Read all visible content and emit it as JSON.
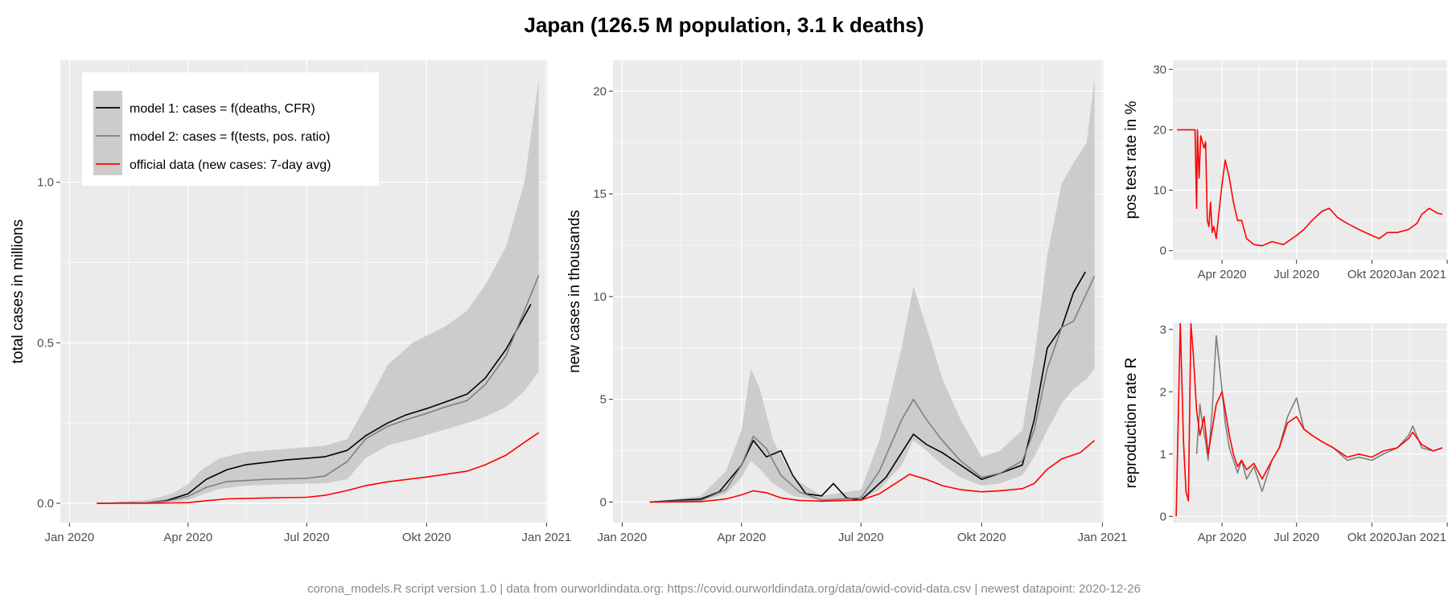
{
  "title": "Japan (126.5 M population, 3.1 k deaths)",
  "caption": "corona_models.R script version 1.0 | data from ourworldindata.org: https://covid.ourworldindata.org/data/owid-covid-data.csv | newest datapoint: 2020-12-26",
  "colors": {
    "panel_bg": "#ebebeb",
    "grid": "#ffffff",
    "band": "#cccccc",
    "model1": "#000000",
    "model2": "#7f7f7f",
    "official": "#ff0000"
  },
  "chart_data": [
    {
      "id": "total",
      "type": "line",
      "ylabel": "total cases in millions",
      "xlabel": "",
      "x_ticks": [
        "Jan 2020",
        "Apr 2020",
        "Jul 2020",
        "Okt 2020",
        "Jan 2021"
      ],
      "x_tick_dates": [
        "2020-01-01",
        "2020-04-01",
        "2020-07-01",
        "2020-10-01",
        "2021-01-01"
      ],
      "xlim": [
        "2019-12-25",
        "2021-01-02"
      ],
      "ylim": [
        -0.06,
        1.38
      ],
      "y_ticks": [
        0.0,
        0.5,
        1.0
      ],
      "y_tick_labels": [
        "0.0",
        "0.5",
        "1.0"
      ],
      "grid": true,
      "legend_placement": "top-left",
      "legend": [
        "model 1: cases = f(deaths, CFR)",
        "model 2: cases = f(tests, pos. ratio)",
        "official data (new cases: 7-day avg)"
      ],
      "band": {
        "x": [
          "2020-01-22",
          "2020-03-01",
          "2020-03-20",
          "2020-04-01",
          "2020-04-10",
          "2020-04-25",
          "2020-05-15",
          "2020-06-15",
          "2020-07-15",
          "2020-08-01",
          "2020-08-15",
          "2020-09-01",
          "2020-09-20",
          "2020-10-15",
          "2020-11-01",
          "2020-11-15",
          "2020-12-01",
          "2020-12-15",
          "2020-12-26"
        ],
        "lower": [
          0,
          0,
          0.005,
          0.01,
          0.025,
          0.045,
          0.055,
          0.06,
          0.062,
          0.075,
          0.14,
          0.18,
          0.2,
          0.23,
          0.25,
          0.27,
          0.3,
          0.35,
          0.41
        ],
        "upper": [
          0,
          0.01,
          0.03,
          0.06,
          0.1,
          0.14,
          0.16,
          0.17,
          0.18,
          0.2,
          0.3,
          0.43,
          0.5,
          0.55,
          0.6,
          0.68,
          0.8,
          1.0,
          1.32
        ]
      },
      "series": [
        {
          "name": "model 1: cases = f(deaths, CFR)",
          "color_key": "model1",
          "x": [
            "2020-01-22",
            "2020-03-01",
            "2020-03-15",
            "2020-04-01",
            "2020-04-15",
            "2020-05-01",
            "2020-05-15",
            "2020-06-01",
            "2020-06-15",
            "2020-07-01",
            "2020-07-15",
            "2020-08-01",
            "2020-08-15",
            "2020-09-01",
            "2020-09-15",
            "2020-10-01",
            "2020-10-15",
            "2020-11-01",
            "2020-11-15",
            "2020-12-01",
            "2020-12-20"
          ],
          "values": [
            0,
            0.002,
            0.008,
            0.03,
            0.075,
            0.105,
            0.12,
            0.128,
            0.135,
            0.14,
            0.145,
            0.165,
            0.21,
            0.25,
            0.275,
            0.295,
            0.315,
            0.34,
            0.39,
            0.48,
            0.62
          ]
        },
        {
          "name": "model 2: cases = f(tests, pos. ratio)",
          "color_key": "model2",
          "x": [
            "2020-01-22",
            "2020-03-01",
            "2020-03-15",
            "2020-04-01",
            "2020-04-15",
            "2020-05-01",
            "2020-06-01",
            "2020-07-01",
            "2020-07-15",
            "2020-08-01",
            "2020-08-15",
            "2020-09-01",
            "2020-09-15",
            "2020-10-01",
            "2020-10-15",
            "2020-11-01",
            "2020-11-15",
            "2020-12-01",
            "2020-12-26"
          ],
          "values": [
            0,
            0.002,
            0.006,
            0.022,
            0.05,
            0.068,
            0.075,
            0.078,
            0.085,
            0.13,
            0.2,
            0.24,
            0.26,
            0.28,
            0.3,
            0.32,
            0.37,
            0.46,
            0.71
          ]
        },
        {
          "name": "official data (new cases: 7-day avg)",
          "color_key": "official",
          "x": [
            "2020-01-22",
            "2020-03-01",
            "2020-04-01",
            "2020-04-15",
            "2020-05-01",
            "2020-06-01",
            "2020-07-01",
            "2020-07-15",
            "2020-08-01",
            "2020-08-15",
            "2020-09-01",
            "2020-10-01",
            "2020-11-01",
            "2020-11-15",
            "2020-12-01",
            "2020-12-15",
            "2020-12-26"
          ],
          "values": [
            0,
            0.0002,
            0.002,
            0.008,
            0.014,
            0.017,
            0.019,
            0.025,
            0.04,
            0.055,
            0.067,
            0.082,
            0.1,
            0.12,
            0.15,
            0.19,
            0.22
          ]
        }
      ]
    },
    {
      "id": "new",
      "type": "line",
      "ylabel": "new cases in thousands",
      "xlabel": "",
      "x_ticks": [
        "Jan 2020",
        "Apr 2020",
        "Jul 2020",
        "Okt 2020",
        "Jan 2021"
      ],
      "x_tick_dates": [
        "2020-01-01",
        "2020-04-01",
        "2020-07-01",
        "2020-10-01",
        "2021-01-01"
      ],
      "xlim": [
        "2019-12-25",
        "2021-01-02"
      ],
      "ylim": [
        -1.0,
        21.5
      ],
      "y_ticks": [
        0,
        5,
        10,
        15,
        20
      ],
      "y_tick_labels": [
        "0",
        "5",
        "10",
        "15",
        "20"
      ],
      "grid": true,
      "band": {
        "x": [
          "2020-01-22",
          "2020-03-01",
          "2020-03-20",
          "2020-04-01",
          "2020-04-08",
          "2020-04-15",
          "2020-04-25",
          "2020-05-10",
          "2020-06-01",
          "2020-07-01",
          "2020-07-15",
          "2020-08-01",
          "2020-08-10",
          "2020-08-20",
          "2020-09-01",
          "2020-09-15",
          "2020-10-01",
          "2020-10-15",
          "2020-11-01",
          "2020-11-10",
          "2020-11-20",
          "2020-12-01",
          "2020-12-10",
          "2020-12-20",
          "2020-12-26"
        ],
        "lower": [
          0,
          0.05,
          0.4,
          1.2,
          2.0,
          1.6,
          0.9,
          0.3,
          0.05,
          0.1,
          0.6,
          1.8,
          3.0,
          2.5,
          1.8,
          1.2,
          0.8,
          0.9,
          1.3,
          2.2,
          3.5,
          4.8,
          5.5,
          6.0,
          6.5
        ],
        "upper": [
          0,
          0.3,
          1.5,
          3.5,
          6.5,
          5.5,
          3.0,
          1.2,
          0.3,
          0.6,
          3.0,
          7.5,
          10.5,
          8.5,
          6.0,
          4.0,
          2.2,
          2.5,
          3.5,
          7.0,
          12.0,
          15.5,
          16.5,
          17.5,
          20.6
        ]
      },
      "series": [
        {
          "name": "model 1",
          "color_key": "model1",
          "x": [
            "2020-01-22",
            "2020-03-01",
            "2020-03-15",
            "2020-04-01",
            "2020-04-10",
            "2020-04-20",
            "2020-05-01",
            "2020-05-10",
            "2020-05-20",
            "2020-06-01",
            "2020-06-10",
            "2020-06-20",
            "2020-07-01",
            "2020-07-10",
            "2020-07-20",
            "2020-08-01",
            "2020-08-10",
            "2020-08-20",
            "2020-09-01",
            "2020-09-15",
            "2020-10-01",
            "2020-10-15",
            "2020-11-01",
            "2020-11-10",
            "2020-11-20",
            "2020-12-01",
            "2020-12-10",
            "2020-12-19"
          ],
          "values": [
            0,
            0.15,
            0.5,
            1.8,
            3.0,
            2.2,
            2.5,
            1.3,
            0.4,
            0.3,
            0.9,
            0.2,
            0.1,
            0.6,
            1.2,
            2.4,
            3.3,
            2.8,
            2.4,
            1.8,
            1.1,
            1.4,
            1.8,
            4.0,
            7.5,
            8.5,
            10.2,
            11.2
          ]
        },
        {
          "name": "model 2",
          "color_key": "model2",
          "x": [
            "2020-01-22",
            "2020-03-01",
            "2020-03-20",
            "2020-04-01",
            "2020-04-10",
            "2020-04-20",
            "2020-05-01",
            "2020-05-15",
            "2020-06-01",
            "2020-07-01",
            "2020-07-15",
            "2020-08-01",
            "2020-08-10",
            "2020-08-20",
            "2020-09-01",
            "2020-09-15",
            "2020-10-01",
            "2020-10-15",
            "2020-11-01",
            "2020-11-10",
            "2020-11-20",
            "2020-12-01",
            "2020-12-10",
            "2020-12-26"
          ],
          "values": [
            0,
            0.08,
            0.6,
            1.8,
            3.2,
            2.6,
            1.3,
            0.5,
            0.1,
            0.2,
            1.5,
            4.0,
            5.0,
            4.0,
            3.0,
            2.0,
            1.2,
            1.4,
            2.0,
            3.5,
            6.5,
            8.5,
            8.8,
            11.0
          ]
        },
        {
          "name": "official",
          "color_key": "official",
          "x": [
            "2020-01-22",
            "2020-03-01",
            "2020-03-20",
            "2020-04-01",
            "2020-04-10",
            "2020-04-20",
            "2020-05-01",
            "2020-05-15",
            "2020-06-01",
            "2020-07-01",
            "2020-07-15",
            "2020-08-01",
            "2020-08-07",
            "2020-08-20",
            "2020-09-01",
            "2020-09-15",
            "2020-10-01",
            "2020-10-15",
            "2020-11-01",
            "2020-11-10",
            "2020-11-20",
            "2020-12-01",
            "2020-12-15",
            "2020-12-26"
          ],
          "values": [
            0,
            0.02,
            0.15,
            0.35,
            0.55,
            0.45,
            0.2,
            0.08,
            0.04,
            0.1,
            0.4,
            1.1,
            1.35,
            1.1,
            0.8,
            0.6,
            0.5,
            0.55,
            0.65,
            0.9,
            1.6,
            2.1,
            2.4,
            3.0
          ]
        }
      ]
    },
    {
      "id": "pos",
      "type": "line",
      "ylabel": "pos test rate in %",
      "xlabel": "",
      "x_ticks": [
        "Apr 2020",
        "Jul 2020",
        "Okt 2020",
        "Jan 2021"
      ],
      "x_tick_dates": [
        "2020-04-01",
        "2020-07-01",
        "2020-10-01",
        "2021-01-01"
      ],
      "xlim": [
        "2020-02-01",
        "2021-01-02"
      ],
      "ylim": [
        -1.5,
        31.5
      ],
      "y_ticks": [
        0,
        10,
        20,
        30
      ],
      "y_tick_labels": [
        "0",
        "10",
        "20",
        "30"
      ],
      "grid": true,
      "series": [
        {
          "name": "pos test rate",
          "color_key": "official",
          "x": [
            "2020-02-06",
            "2020-02-27",
            "2020-02-28",
            "2020-03-01",
            "2020-03-02",
            "2020-03-04",
            "2020-03-06",
            "2020-03-10",
            "2020-03-12",
            "2020-03-14",
            "2020-03-16",
            "2020-03-18",
            "2020-03-20",
            "2020-03-22",
            "2020-03-25",
            "2020-03-28",
            "2020-04-01",
            "2020-04-05",
            "2020-04-10",
            "2020-04-15",
            "2020-04-20",
            "2020-04-25",
            "2020-05-01",
            "2020-05-10",
            "2020-05-20",
            "2020-06-01",
            "2020-06-15",
            "2020-07-01",
            "2020-07-10",
            "2020-07-20",
            "2020-08-01",
            "2020-08-10",
            "2020-08-20",
            "2020-09-01",
            "2020-09-15",
            "2020-10-01",
            "2020-10-10",
            "2020-10-20",
            "2020-11-01",
            "2020-11-15",
            "2020-11-25",
            "2020-12-01",
            "2020-12-10",
            "2020-12-20",
            "2020-12-26"
          ],
          "values": [
            20,
            20,
            20,
            7,
            20,
            12,
            19,
            17,
            18,
            5,
            4,
            8,
            3,
            4,
            2,
            6,
            11,
            15,
            12,
            8,
            5,
            5,
            2,
            1,
            0.8,
            1.5,
            1,
            2.5,
            3.5,
            5,
            6.5,
            7,
            5.5,
            4.5,
            3.5,
            2.5,
            2,
            3,
            3,
            3.5,
            4.5,
            6,
            7,
            6.2,
            6
          ]
        }
      ]
    },
    {
      "id": "repr",
      "type": "line",
      "ylabel": "reproduction rate R",
      "xlabel": "",
      "x_ticks": [
        "Apr 2020",
        "Jul 2020",
        "Okt 2020",
        "Jan 2021"
      ],
      "x_tick_dates": [
        "2020-04-01",
        "2020-07-01",
        "2020-10-01",
        "2021-01-01"
      ],
      "xlim": [
        "2020-02-01",
        "2021-01-02"
      ],
      "ylim": [
        -0.1,
        3.1
      ],
      "y_ticks": [
        0,
        1,
        2,
        3
      ],
      "y_tick_labels": [
        "0",
        "1",
        "2",
        "3"
      ],
      "grid": true,
      "series": [
        {
          "name": "model 2",
          "color_key": "model2",
          "x": [
            "2020-03-01",
            "2020-03-05",
            "2020-03-08",
            "2020-03-12",
            "2020-03-15",
            "2020-03-20",
            "2020-03-25",
            "2020-03-30",
            "2020-04-05",
            "2020-04-10",
            "2020-04-15",
            "2020-04-20",
            "2020-04-25",
            "2020-05-01",
            "2020-05-10",
            "2020-05-20",
            "2020-06-01",
            "2020-06-10",
            "2020-06-20",
            "2020-07-01",
            "2020-07-10",
            "2020-07-20",
            "2020-08-01",
            "2020-08-15",
            "2020-09-01",
            "2020-09-15",
            "2020-10-01",
            "2020-10-15",
            "2020-11-01",
            "2020-11-15",
            "2020-11-20",
            "2020-12-01",
            "2020-12-15",
            "2020-12-26"
          ],
          "values": [
            1.0,
            1.8,
            1.5,
            1.2,
            0.9,
            1.7,
            2.9,
            2.3,
            1.5,
            1.1,
            0.9,
            0.7,
            0.9,
            0.6,
            0.8,
            0.4,
            0.9,
            1.1,
            1.6,
            1.9,
            1.4,
            1.3,
            1.2,
            1.1,
            0.9,
            0.95,
            0.9,
            1.0,
            1.1,
            1.3,
            1.45,
            1.1,
            1.05,
            1.1
          ]
        },
        {
          "name": "reproduction rate",
          "color_key": "official",
          "x": [
            "2020-02-05",
            "2020-02-10",
            "2020-02-14",
            "2020-02-17",
            "2020-02-20",
            "2020-02-23",
            "2020-02-26",
            "2020-03-01",
            "2020-03-05",
            "2020-03-10",
            "2020-03-15",
            "2020-03-20",
            "2020-03-25",
            "2020-04-01",
            "2020-04-05",
            "2020-04-10",
            "2020-04-15",
            "2020-04-20",
            "2020-04-25",
            "2020-05-01",
            "2020-05-10",
            "2020-05-20",
            "2020-06-01",
            "2020-06-10",
            "2020-06-20",
            "2020-07-01",
            "2020-07-10",
            "2020-07-20",
            "2020-08-01",
            "2020-08-15",
            "2020-09-01",
            "2020-09-15",
            "2020-10-01",
            "2020-10-15",
            "2020-11-01",
            "2020-11-15",
            "2020-11-20",
            "2020-12-01",
            "2020-12-15",
            "2020-12-26"
          ],
          "values": [
            0.0,
            3.3,
            1.2,
            0.4,
            0.25,
            3.3,
            2.6,
            1.7,
            1.3,
            1.6,
            1.0,
            1.4,
            1.8,
            2.0,
            1.7,
            1.3,
            1.0,
            0.8,
            0.9,
            0.75,
            0.85,
            0.6,
            0.9,
            1.1,
            1.5,
            1.6,
            1.4,
            1.3,
            1.2,
            1.1,
            0.95,
            1.0,
            0.95,
            1.05,
            1.1,
            1.25,
            1.35,
            1.15,
            1.05,
            1.1
          ]
        }
      ]
    }
  ]
}
